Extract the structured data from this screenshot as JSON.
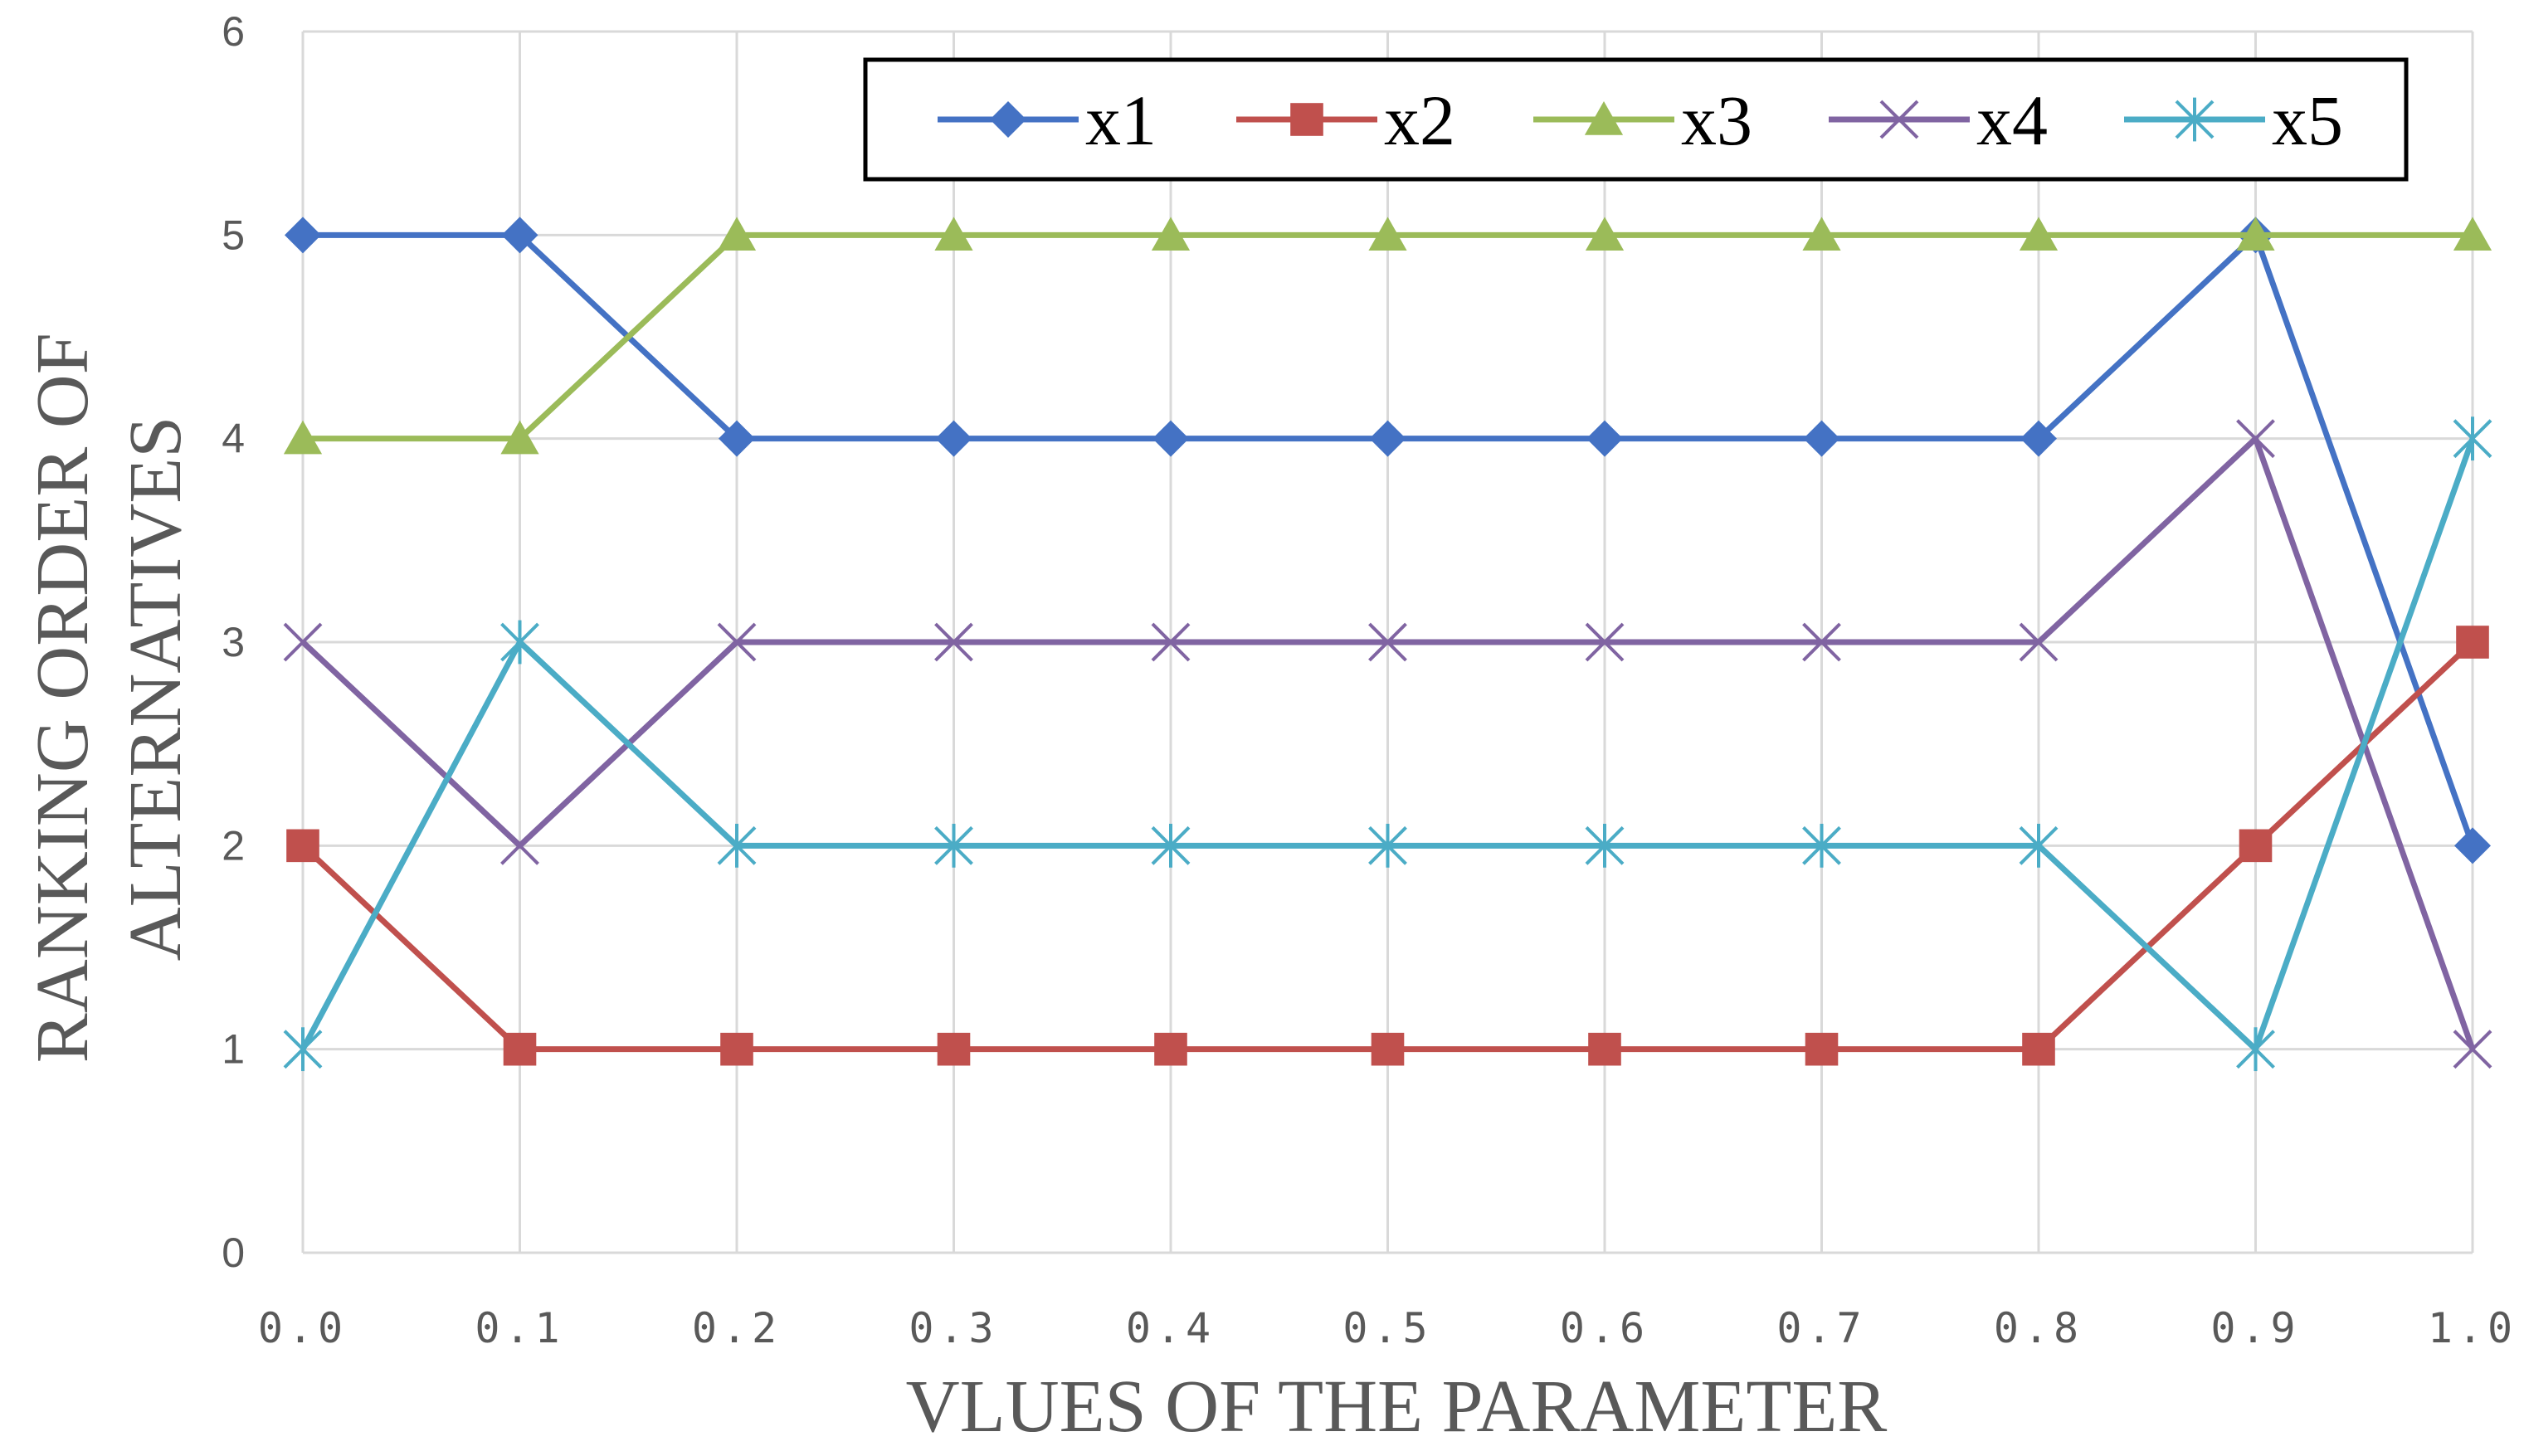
{
  "chart_data": {
    "type": "line",
    "x": [
      "0.0",
      "0.1",
      "0.2",
      "0.3",
      "0.4",
      "0.5",
      "0.6",
      "0.7",
      "0.8",
      "0.9",
      "1.0"
    ],
    "xlabel": "VLUES  OF THE  PARAMETER",
    "ylabel_lines": [
      "RANKING ORDER OF",
      "ALTERNATIVES"
    ],
    "ylim": [
      0,
      6
    ],
    "yticks": [
      "0",
      "1",
      "2",
      "3",
      "4",
      "5",
      "6"
    ],
    "grid": true,
    "legend_position": "top-right",
    "series": [
      {
        "name": "x1",
        "color": "#4472C4",
        "marker": "diamond",
        "values": [
          5,
          5,
          4,
          4,
          4,
          4,
          4,
          4,
          4,
          5,
          2
        ]
      },
      {
        "name": "x2",
        "color": "#C0504D",
        "marker": "square",
        "values": [
          2,
          1,
          1,
          1,
          1,
          1,
          1,
          1,
          1,
          2,
          3
        ]
      },
      {
        "name": "x3",
        "color": "#9BBB59",
        "marker": "triangle",
        "values": [
          4,
          4,
          5,
          5,
          5,
          5,
          5,
          5,
          5,
          5,
          5
        ]
      },
      {
        "name": "x4",
        "color": "#8064A2",
        "marker": "x",
        "values": [
          3,
          2,
          3,
          3,
          3,
          3,
          3,
          3,
          3,
          4,
          1
        ]
      },
      {
        "name": "x5",
        "color": "#4BACC6",
        "marker": "star",
        "values": [
          1,
          3,
          2,
          2,
          2,
          2,
          2,
          2,
          2,
          1,
          4
        ]
      }
    ]
  }
}
